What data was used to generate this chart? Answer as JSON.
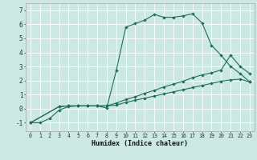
{
  "xlabel": "Humidex (Indice chaleur)",
  "xlim": [
    -0.5,
    23.5
  ],
  "ylim": [
    -1.6,
    7.5
  ],
  "xticks": [
    0,
    1,
    2,
    3,
    4,
    5,
    6,
    7,
    8,
    9,
    10,
    11,
    12,
    13,
    14,
    15,
    16,
    17,
    18,
    19,
    20,
    21,
    22,
    23
  ],
  "yticks": [
    -1,
    0,
    1,
    2,
    3,
    4,
    5,
    6,
    7
  ],
  "bg_color": "#cce8e2",
  "grid_color": "#b8d8d2",
  "line_color": "#1e6e5a",
  "line1_x": [
    0,
    1,
    2,
    3,
    4,
    5,
    6,
    7,
    8,
    9,
    10,
    11,
    12,
    13,
    14,
    15,
    16,
    17,
    18,
    19,
    20,
    21,
    22,
    23
  ],
  "line1_y": [
    -1.0,
    -1.0,
    -0.7,
    -0.1,
    0.15,
    0.2,
    0.2,
    0.2,
    0.05,
    2.7,
    5.8,
    6.05,
    6.3,
    6.7,
    6.5,
    6.5,
    6.6,
    6.75,
    6.1,
    4.5,
    3.8,
    3.0,
    2.5,
    1.9
  ],
  "line2_x": [
    0,
    3,
    4,
    5,
    6,
    7,
    8,
    9,
    10,
    11,
    12,
    13,
    14,
    15,
    16,
    17,
    18,
    19,
    20,
    21,
    22,
    23
  ],
  "line2_y": [
    -1.0,
    0.15,
    0.2,
    0.2,
    0.2,
    0.2,
    0.2,
    0.4,
    0.65,
    0.85,
    1.1,
    1.3,
    1.55,
    1.75,
    1.95,
    2.2,
    2.4,
    2.55,
    2.75,
    3.8,
    3.0,
    2.5
  ],
  "line3_x": [
    0,
    3,
    4,
    5,
    6,
    7,
    8,
    9,
    10,
    11,
    12,
    13,
    14,
    15,
    16,
    17,
    18,
    19,
    20,
    21,
    22,
    23
  ],
  "line3_y": [
    -1.0,
    0.15,
    0.2,
    0.2,
    0.2,
    0.2,
    0.2,
    0.25,
    0.45,
    0.6,
    0.75,
    0.9,
    1.05,
    1.2,
    1.35,
    1.5,
    1.65,
    1.8,
    1.95,
    2.05,
    2.1,
    1.9
  ]
}
